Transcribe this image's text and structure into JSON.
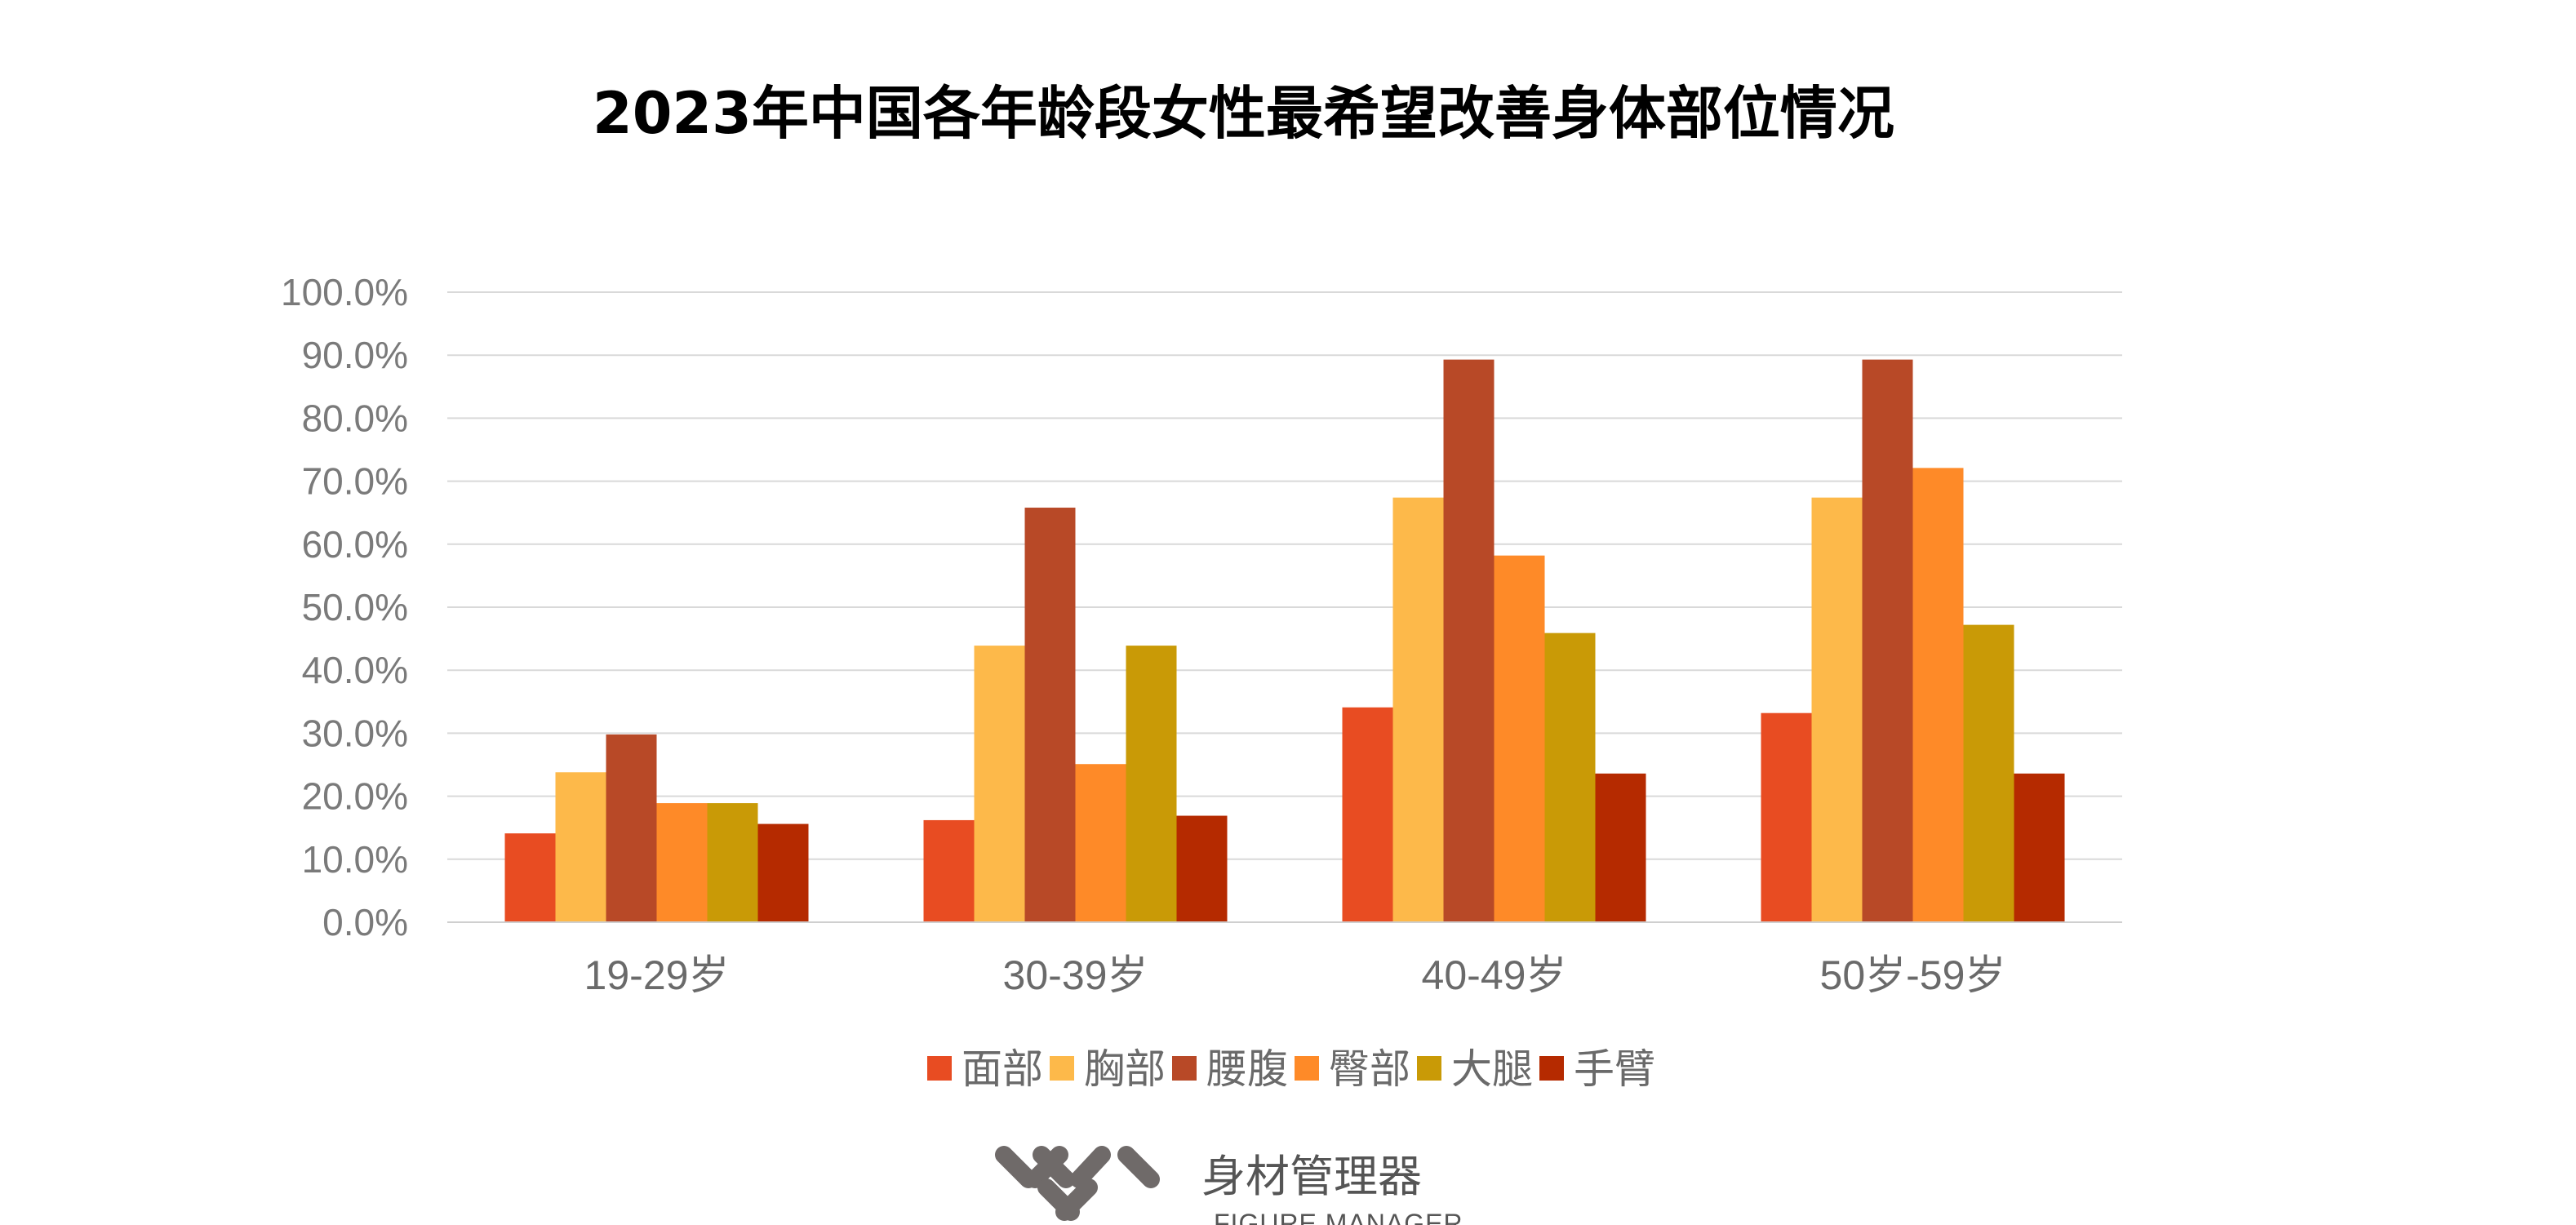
{
  "chart_data": {
    "type": "bar",
    "title": "2023年中国各年龄段女性最希望改善身体部位情况",
    "categories": [
      "19-29岁",
      "30-39岁",
      "40-49岁",
      "50岁-59岁"
    ],
    "series": [
      {
        "name": "面部",
        "color": "#E84C22",
        "values": [
          14.1,
          16.2,
          34.1,
          33.2
        ]
      },
      {
        "name": "胸部",
        "color": "#FDB94A",
        "values": [
          23.8,
          43.9,
          67.4,
          67.4
        ]
      },
      {
        "name": "腰腹",
        "color": "#B84927",
        "values": [
          29.8,
          65.8,
          89.3,
          89.3
        ]
      },
      {
        "name": "臀部",
        "color": "#FE8A28",
        "values": [
          18.9,
          25.1,
          58.2,
          72.1
        ]
      },
      {
        "name": "大腿",
        "color": "#C99A06",
        "values": [
          18.9,
          43.9,
          45.9,
          47.2
        ]
      },
      {
        "name": "手臂",
        "color": "#B52A00",
        "values": [
          15.6,
          16.9,
          23.6,
          23.6
        ]
      }
    ],
    "ylim": [
      0,
      100
    ],
    "y_ticks": [
      "0.0%",
      "10.0%",
      "20.0%",
      "30.0%",
      "40.0%",
      "50.0%",
      "60.0%",
      "70.0%",
      "80.0%",
      "90.0%",
      "100.0%"
    ],
    "grid": true,
    "legend_position": "bottom"
  },
  "logo": {
    "name_cn": "身材管理器",
    "name_en": "FIGURE MANAGER",
    "color": "#6f6a69"
  }
}
